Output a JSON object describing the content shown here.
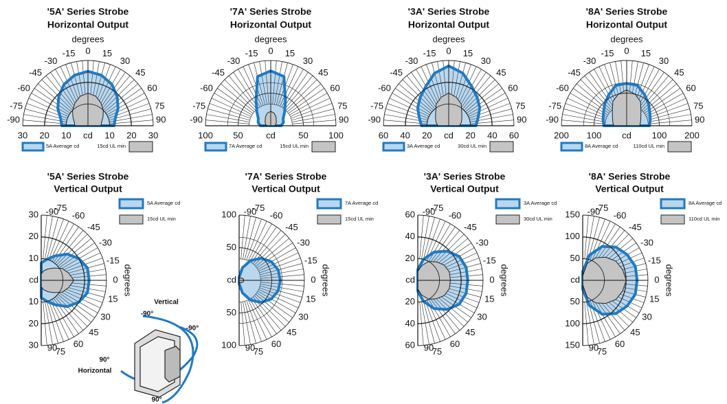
{
  "chart_data": [
    {
      "type": "polar",
      "direction": "up",
      "title": "'5A' Series Strobe",
      "subtitle": "Horizontal Output",
      "theta_label": "degrees",
      "r_label": "cd",
      "x": [
        -90,
        -75,
        -60,
        -45,
        -30,
        -15,
        0,
        15,
        30,
        45,
        60,
        75,
        90
      ],
      "thetaticks": [
        -90,
        -75,
        -60,
        -45,
        -30,
        -15,
        0,
        15,
        30,
        45,
        60,
        75,
        90
      ],
      "rlim": [
        0,
        30
      ],
      "rticks": [
        10,
        20,
        30
      ],
      "series": [
        {
          "name": "5A Average cd",
          "color": "#1f7ac4",
          "values": [
            12,
            13,
            16,
            19,
            22,
            24,
            25,
            24,
            22,
            19,
            16,
            13,
            12
          ]
        },
        {
          "name": "15cd UL min",
          "color": "#c4c4c4",
          "values": [
            6,
            6.5,
            8,
            10,
            12,
            14,
            15,
            14,
            12,
            10,
            8,
            6.5,
            6
          ]
        }
      ]
    },
    {
      "type": "polar",
      "direction": "up",
      "title": "'7A' Series Strobe",
      "subtitle": "Horizontal Output",
      "theta_label": "degrees",
      "r_label": "cd",
      "x": [
        -90,
        -75,
        -60,
        -45,
        -30,
        -15,
        0,
        15,
        30,
        45,
        60,
        75,
        90
      ],
      "thetaticks": [
        -90,
        -75,
        -60,
        -45,
        -30,
        -15,
        0,
        15,
        30,
        45,
        60,
        75,
        90
      ],
      "rlim": [
        0,
        100
      ],
      "rticks": [
        50,
        100
      ],
      "series": [
        {
          "name": "7A Average cd",
          "color": "#1f7ac4",
          "values": [
            16,
            20,
            22,
            30,
            45,
            78,
            84,
            78,
            45,
            30,
            22,
            20,
            16
          ]
        },
        {
          "name": "15cd UL min",
          "color": "#c4c4c4",
          "values": [
            6,
            8,
            10,
            12,
            16,
            20,
            22,
            20,
            16,
            12,
            10,
            8,
            6
          ]
        }
      ]
    },
    {
      "type": "polar",
      "direction": "up",
      "title": "'3A' Series Strobe",
      "subtitle": "Horizontal Output",
      "theta_label": "degrees",
      "r_label": "cd",
      "x": [
        -90,
        -75,
        -60,
        -45,
        -30,
        -15,
        0,
        15,
        30,
        45,
        60,
        75,
        90
      ],
      "thetaticks": [
        -90,
        -75,
        -60,
        -45,
        -30,
        -15,
        0,
        15,
        30,
        45,
        60,
        75,
        90
      ],
      "rlim": [
        0,
        60
      ],
      "rticks": [
        20,
        40,
        60
      ],
      "series": [
        {
          "name": "3A Average cd",
          "color": "#1f7ac4",
          "values": [
            25,
            28,
            33,
            37,
            42,
            50,
            55,
            50,
            42,
            37,
            33,
            28,
            25
          ]
        },
        {
          "name": "30cd UL min",
          "color": "#c4c4c4",
          "values": [
            10,
            12,
            14,
            17,
            23,
            27,
            30,
            27,
            23,
            17,
            14,
            12,
            10
          ]
        }
      ]
    },
    {
      "type": "polar",
      "direction": "up",
      "title": "'8A' Series Strobe",
      "subtitle": "Horizontal Output",
      "theta_label": "degrees",
      "r_label": "cd",
      "x": [
        -90,
        -75,
        -60,
        -45,
        -30,
        -15,
        0,
        15,
        30,
        45,
        60,
        75,
        90
      ],
      "thetaticks": [
        -90,
        -75,
        -60,
        -45,
        -30,
        -15,
        0,
        15,
        30,
        45,
        60,
        75,
        90
      ],
      "rlim": [
        0,
        200
      ],
      "rticks": [
        100,
        200
      ],
      "series": [
        {
          "name": "8A Average cd",
          "color": "#1f7ac4",
          "values": [
            70,
            75,
            82,
            95,
            110,
            128,
            130,
            128,
            110,
            95,
            82,
            75,
            70
          ]
        },
        {
          "name": "110cd UL min",
          "color": "#c4c4c4",
          "values": [
            40,
            44,
            50,
            62,
            85,
            100,
            110,
            100,
            85,
            62,
            50,
            44,
            40
          ]
        }
      ]
    },
    {
      "type": "polar",
      "direction": "right",
      "title": "'5A' Series Strobe",
      "subtitle": "Vertical Output",
      "theta_label": "degrees",
      "r_label": "cd",
      "x": [
        -90,
        -75,
        -60,
        -45,
        -30,
        -15,
        0,
        15,
        30,
        45,
        60,
        75,
        90
      ],
      "thetaticks": [
        -90,
        -75,
        -60,
        -45,
        -30,
        -15,
        0,
        15,
        30,
        45,
        60,
        75,
        90
      ],
      "rlim": [
        0,
        30
      ],
      "rticks": [
        10,
        20,
        30
      ],
      "series": [
        {
          "name": "5A Average cd",
          "color": "#1f7ac4",
          "values": [
            8,
            10,
            13,
            17,
            20,
            22,
            22,
            22,
            20,
            17,
            13,
            10,
            8
          ]
        },
        {
          "name": "15cd UL min",
          "color": "#c4c4c4",
          "values": [
            3,
            4.5,
            6,
            8,
            11,
            13,
            15,
            13,
            11,
            8,
            6,
            4.5,
            3
          ]
        }
      ]
    },
    {
      "type": "polar",
      "direction": "right",
      "title": "'7A' Series Strobe",
      "subtitle": "Vertical Output",
      "theta_label": "degrees",
      "r_label": "cd",
      "x": [
        -90,
        -75,
        -60,
        -45,
        -30,
        -15,
        0,
        15,
        30,
        45,
        60,
        75,
        90
      ],
      "thetaticks": [
        -90,
        -75,
        -60,
        -45,
        -30,
        -15,
        0,
        15,
        30,
        45,
        60,
        75,
        90
      ],
      "rlim": [
        0,
        100
      ],
      "rticks": [
        50,
        100
      ],
      "series": [
        {
          "name": "7A Average cd",
          "color": "#1f7ac4",
          "values": [
            5,
            20,
            35,
            48,
            57,
            62,
            63,
            62,
            57,
            48,
            35,
            20,
            5
          ]
        },
        {
          "name": "15cd UL min",
          "color": "#c4c4c4",
          "values": [
            2,
            3,
            4,
            5,
            6,
            7,
            7,
            7,
            6,
            5,
            4,
            3,
            2
          ]
        }
      ]
    },
    {
      "type": "polar",
      "direction": "right",
      "title": "'3A' Series Strobe",
      "subtitle": "Vertical Output",
      "theta_label": "degrees",
      "r_label": "cd",
      "x": [
        -90,
        -75,
        -60,
        -45,
        -30,
        -15,
        0,
        15,
        30,
        45,
        60,
        75,
        90
      ],
      "thetaticks": [
        -90,
        -75,
        -60,
        -45,
        -30,
        -15,
        0,
        15,
        30,
        45,
        60,
        75,
        90
      ],
      "rlim": [
        0,
        60
      ],
      "rticks": [
        20,
        40,
        60
      ],
      "series": [
        {
          "name": "3A Average cd",
          "color": "#1f7ac4",
          "values": [
            10,
            20,
            30,
            38,
            44,
            46,
            46,
            46,
            44,
            38,
            30,
            20,
            10
          ]
        },
        {
          "name": "30cd UL min",
          "color": "#c4c4c4",
          "values": [
            8,
            14,
            20,
            24,
            28,
            30,
            30,
            30,
            28,
            24,
            20,
            14,
            8
          ]
        }
      ]
    },
    {
      "type": "polar",
      "direction": "right",
      "title": "'8A' Series Strobe",
      "subtitle": "Vertical Output",
      "theta_label": "degrees",
      "r_label": "cd",
      "x": [
        -90,
        -75,
        -60,
        -45,
        -30,
        -15,
        0,
        15,
        30,
        45,
        60,
        75,
        90
      ],
      "thetaticks": [
        -90,
        -75,
        -60,
        -45,
        -30,
        -15,
        0,
        15,
        30,
        45,
        60,
        75,
        90
      ],
      "rlim": [
        0,
        150
      ],
      "rticks": [
        50,
        100,
        150
      ],
      "series": [
        {
          "name": "8A Average cd",
          "color": "#1f7ac4",
          "values": [
            20,
            60,
            90,
            108,
            118,
            125,
            125,
            125,
            118,
            108,
            90,
            60,
            20
          ]
        },
        {
          "name": "110cd UL min",
          "color": "#c4c4c4",
          "values": [
            10,
            40,
            60,
            75,
            88,
            95,
            100,
            95,
            88,
            75,
            60,
            40,
            10
          ]
        }
      ]
    }
  ],
  "inset": {
    "vertical": "Vertical",
    "vertical_start": "-90°",
    "horizontal_start": "-90°",
    "horizontal_end": "90°",
    "horizontal": "Horizontal",
    "vertical_end": "90°"
  }
}
